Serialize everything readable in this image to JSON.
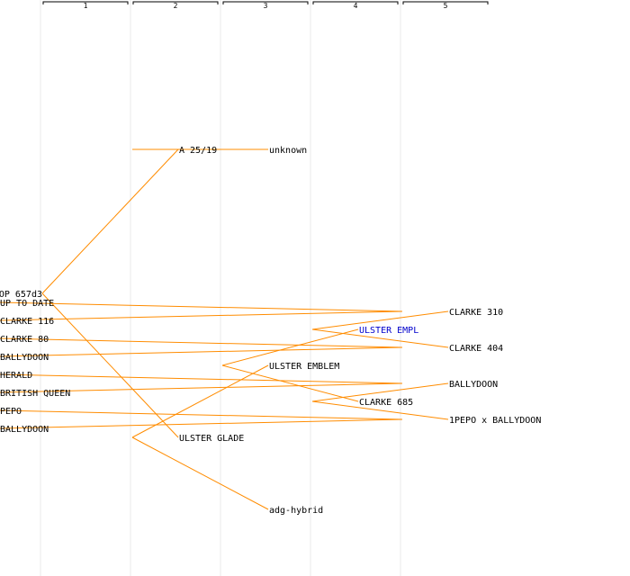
{
  "generations": [
    "1",
    "2",
    "3",
    "4",
    "5"
  ],
  "colors": {
    "edge": "#ff8c00",
    "text": "#000000",
    "highlight": "#0000cc",
    "column": "#e8e8e8"
  },
  "tree": {
    "root": {
      "label": "OP 657d3"
    },
    "nodes": [
      {
        "id": "a2519",
        "label": "A 25/19",
        "parent": "root",
        "gen": 1
      },
      {
        "id": "ulster_glade",
        "label": "ULSTER GLADE",
        "parent": "root",
        "gen": 1
      },
      {
        "id": "unknown",
        "label": "unknown",
        "parent": "a2519",
        "gen": 2
      },
      {
        "id": "ulster_emblem",
        "label": "ULSTER EMBLEM",
        "parent": "ulster_glade",
        "gen": 2
      },
      {
        "id": "adg_hybrid",
        "label": "adg-hybrid",
        "parent": "ulster_glade",
        "gen": 2
      },
      {
        "id": "ulster_empl",
        "label": "ULSTER EMPL",
        "parent": "ulster_emblem",
        "gen": 3,
        "highlight": true
      },
      {
        "id": "clarke_685",
        "label": "CLARKE 685",
        "parent": "ulster_emblem",
        "gen": 3
      },
      {
        "id": "clarke_310",
        "label": "CLARKE 310",
        "parent": "ulster_empl",
        "gen": 4
      },
      {
        "id": "clarke_404",
        "label": "CLARKE 404",
        "parent": "ulster_empl",
        "gen": 4
      },
      {
        "id": "ballydoon_a",
        "label": "BALLYDOON",
        "parent": "clarke_685",
        "gen": 4
      },
      {
        "id": "pepo_x",
        "label": "1PEPO x BALLYDOON",
        "parent": "clarke_685",
        "gen": 4
      },
      {
        "id": "up_to_date",
        "label": "UP TO DATE",
        "parent": "clarke_310",
        "gen": 5
      },
      {
        "id": "clarke_116",
        "label": "CLARKE 116",
        "parent": "clarke_310",
        "gen": 5
      },
      {
        "id": "clarke_80",
        "label": "CLARKE 80",
        "parent": "clarke_404",
        "gen": 5
      },
      {
        "id": "ballydoon_b",
        "label": "BALLYDOON",
        "parent": "clarke_404",
        "gen": 5
      },
      {
        "id": "herald",
        "label": "HERALD",
        "parent": "ballydoon_a",
        "gen": 5
      },
      {
        "id": "british_queen",
        "label": "BRITISH QUEEN",
        "parent": "ballydoon_a",
        "gen": 5
      },
      {
        "id": "pepo",
        "label": "PEPO",
        "parent": "pepo_x",
        "gen": 5
      },
      {
        "id": "ballydoon_c",
        "label": "BALLYDOON",
        "parent": "pepo_x",
        "gen": 5
      }
    ]
  }
}
